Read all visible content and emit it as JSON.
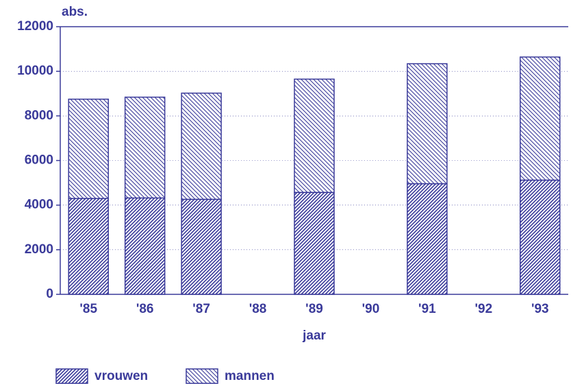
{
  "chart_data": {
    "type": "bar",
    "stacked": true,
    "y_label": "abs.",
    "x_label": "jaar",
    "categories": [
      "'85",
      "'86",
      "'87",
      "'88",
      "'89",
      "'90",
      "'91",
      "'92",
      "'93"
    ],
    "series": [
      {
        "name": "vrouwen",
        "color": "#3a3a9a",
        "values": [
          4300,
          4320,
          4260,
          null,
          4570,
          null,
          4960,
          null,
          5120
        ]
      },
      {
        "name": "mannen",
        "color": "#3a3a9a",
        "values": [
          4450,
          4520,
          4760,
          null,
          5080,
          null,
          5380,
          null,
          5520
        ]
      }
    ],
    "ylim": [
      0,
      12000
    ],
    "yticks": [
      0,
      2000,
      4000,
      6000,
      8000,
      10000,
      12000
    ],
    "grid": true
  }
}
